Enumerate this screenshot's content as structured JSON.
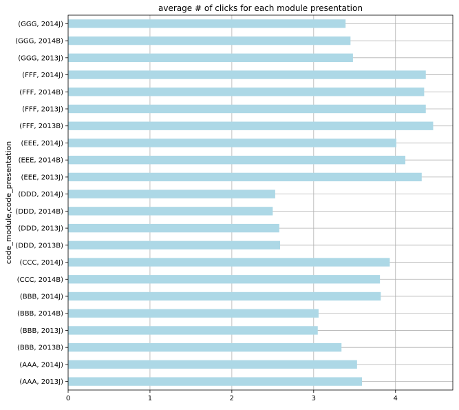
{
  "chart_data": {
    "type": "bar",
    "orientation": "horizontal",
    "title": "average # of clicks for each module presentation",
    "xlabel": "",
    "ylabel": "code_module,code_presentation",
    "categories": [
      "(AAA, 2013J)",
      "(AAA, 2014J)",
      "(BBB, 2013B)",
      "(BBB, 2013J)",
      "(BBB, 2014B)",
      "(BBB, 2014J)",
      "(CCC, 2014B)",
      "(CCC, 2014J)",
      "(DDD, 2013B)",
      "(DDD, 2013J)",
      "(DDD, 2014B)",
      "(DDD, 2014J)",
      "(EEE, 2013J)",
      "(EEE, 2014B)",
      "(EEE, 2014J)",
      "(FFF, 2013B)",
      "(FFF, 2013J)",
      "(FFF, 2014B)",
      "(FFF, 2014J)",
      "(GGG, 2013J)",
      "(GGG, 2014B)",
      "(GGG, 2014J)"
    ],
    "values": [
      3.59,
      3.53,
      3.34,
      3.05,
      3.06,
      3.82,
      3.81,
      3.93,
      2.59,
      2.58,
      2.5,
      2.53,
      4.32,
      4.12,
      4.01,
      4.46,
      4.37,
      4.35,
      4.37,
      3.48,
      3.45,
      3.39
    ],
    "xlim": [
      0,
      4.7
    ],
    "xticks": [
      "0",
      "1",
      "2",
      "3",
      "4"
    ],
    "grid": true,
    "bar_color": "#add8e6"
  }
}
